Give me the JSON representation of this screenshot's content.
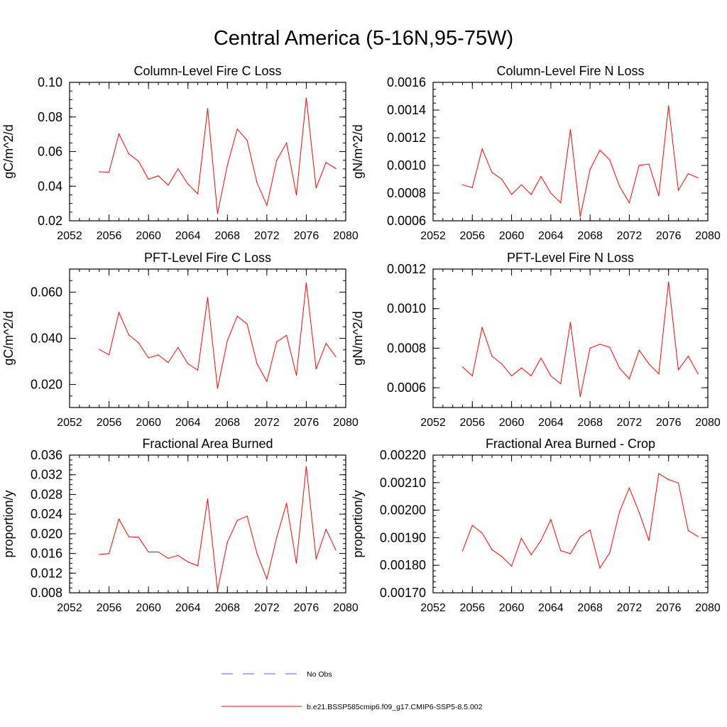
{
  "figure": {
    "title": "Central America (5-16N,95-75W)"
  },
  "legend": {
    "placement": "bottom-center",
    "entries": [
      {
        "label": "No Obs",
        "color": "#5a5aff",
        "style": "dashed"
      },
      {
        "label": "b.e21.BSSP585cmip6.f09_g17.CMIP6-SSP5-8.5.002",
        "color": "#ff0000",
        "style": "solid"
      }
    ]
  },
  "chart_data": [
    {
      "type": "line",
      "title": "Column-Level Fire C Loss",
      "ylabel": "gC/m^2/d",
      "xlabel": "",
      "xlim": [
        2052,
        2080
      ],
      "xticks": [
        2052,
        2056,
        2060,
        2064,
        2068,
        2072,
        2076,
        2080
      ],
      "xtick_labels": [
        "2052",
        "2056",
        "2060",
        "2064",
        "2068",
        "2072",
        "2076",
        "2080"
      ],
      "ylim": [
        0.02,
        0.1
      ],
      "yticks": [
        0.02,
        0.04,
        0.06,
        0.08,
        0.1
      ],
      "ytick_labels": [
        "0.02",
        "0.04",
        "0.06",
        "0.08",
        "0.10"
      ],
      "y_minor_step": 0.005,
      "grid": false,
      "x": [
        2055,
        2056,
        2057,
        2058,
        2059,
        2060,
        2061,
        2062,
        2063,
        2064,
        2065,
        2066,
        2067,
        2068,
        2069,
        2070,
        2071,
        2072,
        2073,
        2074,
        2075,
        2076,
        2077,
        2078,
        2079
      ],
      "series": [
        {
          "color": "#ff0000",
          "values": [
            0.0483,
            0.0481,
            0.0702,
            0.0587,
            0.0544,
            0.044,
            0.046,
            0.0406,
            0.05,
            0.0413,
            0.0356,
            0.0849,
            0.0242,
            0.0521,
            0.073,
            0.0665,
            0.042,
            0.0289,
            0.055,
            0.065,
            0.035,
            0.091,
            0.039,
            0.0537,
            0.0502
          ]
        }
      ]
    },
    {
      "type": "line",
      "title": "Column-Level Fire N Loss",
      "ylabel": "gN/m^2/d",
      "xlabel": "",
      "xlim": [
        2052,
        2080
      ],
      "xticks": [
        2052,
        2056,
        2060,
        2064,
        2068,
        2072,
        2076,
        2080
      ],
      "xtick_labels": [
        "2052",
        "2056",
        "2060",
        "2064",
        "2068",
        "2072",
        "2076",
        "2080"
      ],
      "ylim": [
        0.0006,
        0.0016
      ],
      "yticks": [
        0.0006,
        0.0008,
        0.001,
        0.0012,
        0.0014,
        0.0016
      ],
      "ytick_labels": [
        "0.0006",
        "0.0008",
        "0.0010",
        "0.0012",
        "0.0014",
        "0.0016"
      ],
      "y_minor_step": 5e-05,
      "grid": false,
      "x": [
        2055,
        2056,
        2057,
        2058,
        2059,
        2060,
        2061,
        2062,
        2063,
        2064,
        2065,
        2066,
        2067,
        2068,
        2069,
        2070,
        2071,
        2072,
        2073,
        2074,
        2075,
        2076,
        2077,
        2078,
        2079
      ],
      "series": [
        {
          "color": "#ff0000",
          "values": [
            0.00086,
            0.00084,
            0.00112,
            0.00095,
            0.0009,
            0.00079,
            0.00086,
            0.00079,
            0.00092,
            0.0008,
            0.00073,
            0.00126,
            0.00063,
            0.00097,
            0.00111,
            0.00104,
            0.00085,
            0.00073,
            0.001,
            0.00101,
            0.00078,
            0.00143,
            0.00082,
            0.00094,
            0.00091
          ]
        }
      ]
    },
    {
      "type": "line",
      "title": "PFT-Level Fire C Loss",
      "ylabel": "gC/m^2/d",
      "xlabel": "",
      "xlim": [
        2052,
        2080
      ],
      "xticks": [
        2052,
        2056,
        2060,
        2064,
        2068,
        2072,
        2076,
        2080
      ],
      "xtick_labels": [
        "2052",
        "2056",
        "2060",
        "2064",
        "2068",
        "2072",
        "2076",
        "2080"
      ],
      "ylim": [
        0.01,
        0.07
      ],
      "yticks": [
        0.02,
        0.04,
        0.06
      ],
      "ytick_labels": [
        "0.020",
        "0.040",
        "0.060"
      ],
      "y_minor_step": 0.005,
      "grid": false,
      "x": [
        2055,
        2056,
        2057,
        2058,
        2059,
        2060,
        2061,
        2062,
        2063,
        2064,
        2065,
        2066,
        2067,
        2068,
        2069,
        2070,
        2071,
        2072,
        2073,
        2074,
        2075,
        2076,
        2077,
        2078,
        2079
      ],
      "series": [
        {
          "color": "#ff0000",
          "values": [
            0.0352,
            0.0328,
            0.0512,
            0.0415,
            0.038,
            0.0315,
            0.0328,
            0.0295,
            0.036,
            0.029,
            0.0262,
            0.0577,
            0.0183,
            0.039,
            0.0496,
            0.0462,
            0.029,
            0.0213,
            0.0385,
            0.0413,
            0.024,
            0.064,
            0.0267,
            0.0378,
            0.032
          ]
        }
      ]
    },
    {
      "type": "line",
      "title": "PFT-Level Fire N Loss",
      "ylabel": "gN/m^2/d",
      "xlabel": "",
      "xlim": [
        2052,
        2080
      ],
      "xticks": [
        2052,
        2056,
        2060,
        2064,
        2068,
        2072,
        2076,
        2080
      ],
      "xtick_labels": [
        "2052",
        "2056",
        "2060",
        "2064",
        "2068",
        "2072",
        "2076",
        "2080"
      ],
      "ylim": [
        0.0005,
        0.0012
      ],
      "yticks": [
        0.0006,
        0.0008,
        0.001,
        0.0012
      ],
      "ytick_labels": [
        "0.0006",
        "0.0008",
        "0.0010",
        "0.0012"
      ],
      "y_minor_step": 5e-05,
      "grid": false,
      "x": [
        2055,
        2056,
        2057,
        2058,
        2059,
        2060,
        2061,
        2062,
        2063,
        2064,
        2065,
        2066,
        2067,
        2068,
        2069,
        2070,
        2071,
        2072,
        2073,
        2074,
        2075,
        2076,
        2077,
        2078,
        2079
      ],
      "series": [
        {
          "color": "#ff0000",
          "values": [
            0.000705,
            0.00066,
            0.000905,
            0.00076,
            0.00072,
            0.00066,
            0.0007,
            0.00066,
            0.00075,
            0.00066,
            0.00062,
            0.00093,
            0.000555,
            0.0008,
            0.00082,
            0.000805,
            0.0007,
            0.000645,
            0.00079,
            0.00072,
            0.00067,
            0.001135,
            0.00069,
            0.00076,
            0.00067
          ]
        }
      ]
    },
    {
      "type": "line",
      "title": "Fractional Area Burned",
      "ylabel": "proportion/y",
      "xlabel": "",
      "xlim": [
        2052,
        2080
      ],
      "xticks": [
        2052,
        2056,
        2060,
        2064,
        2068,
        2072,
        2076,
        2080
      ],
      "xtick_labels": [
        "2052",
        "2056",
        "2060",
        "2064",
        "2068",
        "2072",
        "2076",
        "2080"
      ],
      "ylim": [
        0.008,
        0.036
      ],
      "yticks": [
        0.008,
        0.012,
        0.016,
        0.02,
        0.024,
        0.028,
        0.032,
        0.036
      ],
      "ytick_labels": [
        "0.008",
        "0.012",
        "0.016",
        "0.020",
        "0.024",
        "0.028",
        "0.032",
        "0.036"
      ],
      "y_minor_step": 0.001,
      "grid": false,
      "x": [
        2055,
        2056,
        2057,
        2058,
        2059,
        2060,
        2061,
        2062,
        2063,
        2064,
        2065,
        2066,
        2067,
        2068,
        2069,
        2070,
        2071,
        2072,
        2073,
        2074,
        2075,
        2076,
        2077,
        2078,
        2079
      ],
      "series": [
        {
          "color": "#ff0000",
          "values": [
            0.0158,
            0.016,
            0.023,
            0.0194,
            0.0193,
            0.0163,
            0.0163,
            0.015,
            0.0156,
            0.0143,
            0.0135,
            0.0271,
            0.0085,
            0.0183,
            0.0227,
            0.0236,
            0.016,
            0.0108,
            0.0193,
            0.0262,
            0.014,
            0.0337,
            0.0149,
            0.0209,
            0.0167
          ]
        }
      ]
    },
    {
      "type": "line",
      "title": "Fractional Area Burned - Crop",
      "ylabel": "proportion/y",
      "xlabel": "",
      "xlim": [
        2052,
        2080
      ],
      "xticks": [
        2052,
        2056,
        2060,
        2064,
        2068,
        2072,
        2076,
        2080
      ],
      "xtick_labels": [
        "2052",
        "2056",
        "2060",
        "2064",
        "2068",
        "2072",
        "2076",
        "2080"
      ],
      "ylim": [
        0.0017,
        0.0022
      ],
      "yticks": [
        0.0017,
        0.0018,
        0.0019,
        0.002,
        0.0021,
        0.0022
      ],
      "ytick_labels": [
        "0.00170",
        "0.00180",
        "0.00190",
        "0.00200",
        "0.00210",
        "0.00220"
      ],
      "y_minor_step": 2e-05,
      "grid": false,
      "x": [
        2055,
        2056,
        2057,
        2058,
        2059,
        2060,
        2061,
        2062,
        2063,
        2064,
        2065,
        2066,
        2067,
        2068,
        2069,
        2070,
        2071,
        2072,
        2073,
        2074,
        2075,
        2076,
        2077,
        2078,
        2079
      ],
      "series": [
        {
          "color": "#ff0000",
          "values": [
            0.001852,
            0.001945,
            0.001917,
            0.001857,
            0.001832,
            0.001797,
            0.001898,
            0.001838,
            0.00189,
            0.001966,
            0.001853,
            0.001842,
            0.001903,
            0.001928,
            0.00179,
            0.001845,
            0.001994,
            0.002081,
            0.001992,
            0.00189,
            0.002133,
            0.002111,
            0.002099,
            0.001926,
            0.001904
          ]
        }
      ]
    }
  ]
}
